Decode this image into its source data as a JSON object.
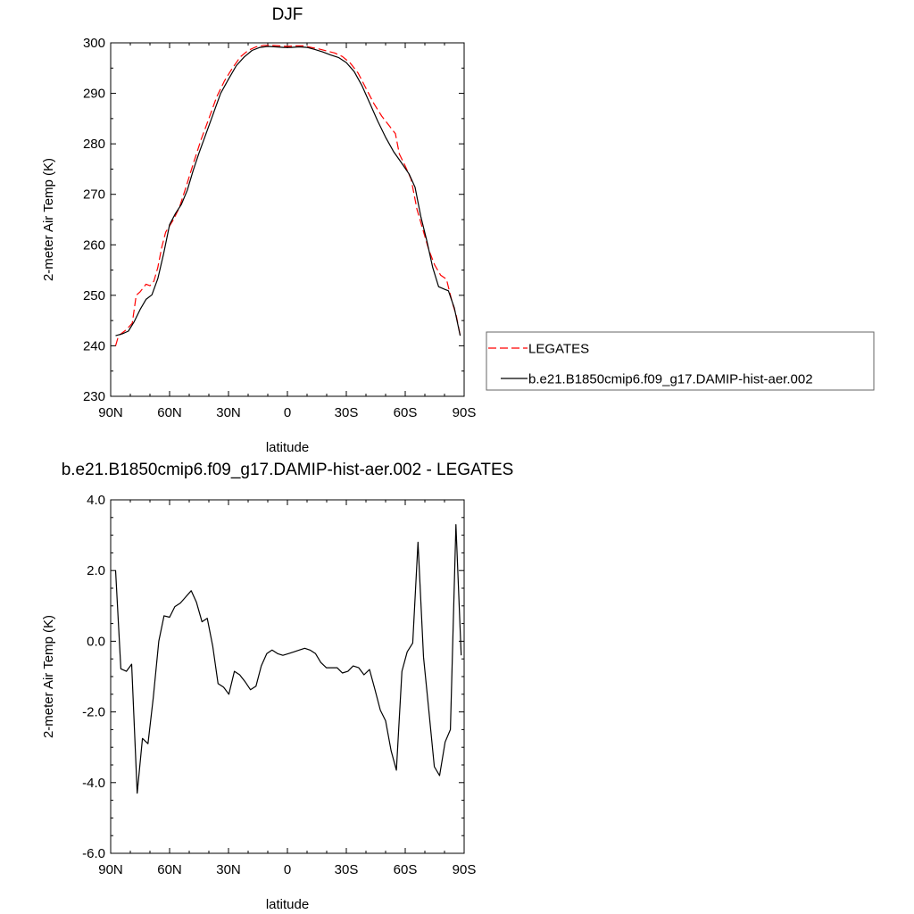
{
  "chart_data": [
    {
      "type": "line",
      "title": "DJF",
      "xlabel": "latitude",
      "ylabel": "2-meter Air Temp (K)",
      "xlim": [
        90,
        -90
      ],
      "ylim": [
        230,
        300
      ],
      "xticks": [
        {
          "v": 90,
          "label": "90N"
        },
        {
          "v": 60,
          "label": "60N"
        },
        {
          "v": 30,
          "label": "30N"
        },
        {
          "v": 0,
          "label": "0"
        },
        {
          "v": -30,
          "label": "30S"
        },
        {
          "v": -60,
          "label": "60S"
        },
        {
          "v": -90,
          "label": "90S"
        }
      ],
      "yticks": [
        {
          "v": 300,
          "label": "300"
        },
        {
          "v": 290,
          "label": "290"
        },
        {
          "v": 280,
          "label": "280"
        },
        {
          "v": 270,
          "label": "270"
        },
        {
          "v": 260,
          "label": "260"
        },
        {
          "v": 250,
          "label": "250"
        },
        {
          "v": 240,
          "label": "240"
        },
        {
          "v": 230,
          "label": "230"
        }
      ],
      "legend": {
        "placement": "right",
        "entries": [
          {
            "label": "LEGATES",
            "color": "#ff0000",
            "dash": true
          },
          {
            "label": "b.e21.B1850cmip6.f09_g17.DAMIP-hist-aer.002",
            "color": "#000000",
            "dash": false
          }
        ]
      },
      "series": [
        {
          "name": "LEGATES",
          "color": "#ff0000",
          "dash": true,
          "points": [
            [
              87.5,
              240
            ],
            [
              86,
              242
            ],
            [
              82,
              243.2
            ],
            [
              79,
              244.5
            ],
            [
              77,
              250
            ],
            [
              75,
              250.7
            ],
            [
              72,
              252.2
            ],
            [
              70,
              251.9
            ],
            [
              68,
              252.8
            ],
            [
              66,
              255.5
            ],
            [
              64,
              259.5
            ],
            [
              62,
              262.5
            ],
            [
              58,
              265
            ],
            [
              55,
              267.4
            ],
            [
              52,
              271
            ],
            [
              48,
              276
            ],
            [
              44,
              280.8
            ],
            [
              40,
              285
            ],
            [
              36,
              289.3
            ],
            [
              32,
              292.5
            ],
            [
              28,
              295
            ],
            [
              24,
              297.2
            ],
            [
              20,
              298.5
            ],
            [
              16,
              299.2
            ],
            [
              12,
              299.5
            ],
            [
              8,
              299.5
            ],
            [
              4,
              299.4
            ],
            [
              0,
              299.3
            ],
            [
              -4,
              299.4
            ],
            [
              -8,
              299.4
            ],
            [
              -12,
              299.1
            ],
            [
              -16,
              298.8
            ],
            [
              -20,
              298.4
            ],
            [
              -24,
              298
            ],
            [
              -28,
              297.3
            ],
            [
              -32,
              296
            ],
            [
              -36,
              294
            ],
            [
              -40,
              291
            ],
            [
              -44,
              288
            ],
            [
              -48,
              285.5
            ],
            [
              -52,
              283.5
            ],
            [
              -55,
              282
            ],
            [
              -57,
              278
            ],
            [
              -60,
              275.6
            ],
            [
              -63,
              273
            ],
            [
              -66,
              267
            ],
            [
              -69,
              263
            ],
            [
              -72,
              259
            ],
            [
              -75,
              256
            ],
            [
              -78,
              254
            ],
            [
              -81,
              253.2
            ],
            [
              -84,
              248.5
            ],
            [
              -86,
              246
            ],
            [
              -88,
              242
            ]
          ]
        },
        {
          "name": "b.e21.B1850cmip6.f09_g17.DAMIP-hist-aer.002",
          "color": "#000000",
          "dash": false,
          "points": [
            [
              87.5,
              242
            ],
            [
              84,
              242.4
            ],
            [
              81,
              242.9
            ],
            [
              78,
              244.8
            ],
            [
              75,
              247.2
            ],
            [
              72,
              249.2
            ],
            [
              69,
              250.1
            ],
            [
              66,
              253.3
            ],
            [
              63,
              258.3
            ],
            [
              60,
              264
            ],
            [
              57,
              266.2
            ],
            [
              54,
              268
            ],
            [
              51,
              270.8
            ],
            [
              48,
              274.7
            ],
            [
              45,
              278.2
            ],
            [
              42,
              281.4
            ],
            [
              38,
              285.7
            ],
            [
              34,
              290
            ],
            [
              30,
              292.8
            ],
            [
              26,
              295.5
            ],
            [
              22,
              297.2
            ],
            [
              18,
              298.5
            ],
            [
              14,
              299.1
            ],
            [
              10,
              299.3
            ],
            [
              6,
              299.2
            ],
            [
              2,
              299.1
            ],
            [
              -2,
              299.1
            ],
            [
              -6,
              299.2
            ],
            [
              -10,
              299.1
            ],
            [
              -14,
              298.7
            ],
            [
              -18,
              298.2
            ],
            [
              -22,
              297.6
            ],
            [
              -26,
              297.1
            ],
            [
              -30,
              296.1
            ],
            [
              -34,
              294.3
            ],
            [
              -38,
              291.5
            ],
            [
              -42,
              288
            ],
            [
              -46,
              284.5
            ],
            [
              -50,
              281.3
            ],
            [
              -54,
              278.5
            ],
            [
              -58,
              276.3
            ],
            [
              -62,
              274
            ],
            [
              -65,
              271.4
            ],
            [
              -68,
              265.5
            ],
            [
              -71,
              260.8
            ],
            [
              -74,
              255.5
            ],
            [
              -77,
              251.7
            ],
            [
              -80,
              251.2
            ],
            [
              -82,
              250.9
            ],
            [
              -85,
              247.5
            ],
            [
              -88,
              242
            ]
          ]
        }
      ]
    },
    {
      "type": "line",
      "title": "b.e21.B1850cmip6.f09_g17.DAMIP-hist-aer.002 - LEGATES",
      "xlabel": "latitude",
      "ylabel": "2-meter Air Temp (K)",
      "xlim": [
        90,
        -90
      ],
      "ylim": [
        -6,
        4
      ],
      "xticks": [
        {
          "v": 90,
          "label": "90N"
        },
        {
          "v": 60,
          "label": "60N"
        },
        {
          "v": 30,
          "label": "30N"
        },
        {
          "v": 0,
          "label": "0"
        },
        {
          "v": -30,
          "label": "30S"
        },
        {
          "v": -60,
          "label": "60S"
        },
        {
          "v": -90,
          "label": "90S"
        }
      ],
      "yticks": [
        {
          "v": 4,
          "label": "4.0"
        },
        {
          "v": 2,
          "label": "2.0"
        },
        {
          "v": 0,
          "label": "0.0"
        },
        {
          "v": -2,
          "label": "-2.0"
        },
        {
          "v": -4,
          "label": "-4.0"
        },
        {
          "v": -6,
          "label": "-6.0"
        }
      ],
      "series": [
        {
          "name": "",
          "color": "#000000",
          "dash": false,
          "points": [
            [
              87.5,
              2
            ],
            [
              84.8,
              -0.78
            ],
            [
              82,
              -0.85
            ],
            [
              79.3,
              -0.65
            ],
            [
              76.5,
              -4.3
            ],
            [
              73.8,
              -2.75
            ],
            [
              71,
              -2.9
            ],
            [
              68.3,
              -1.6
            ],
            [
              65.5,
              0
            ],
            [
              62.8,
              0.72
            ],
            [
              60,
              0.68
            ],
            [
              57.3,
              0.98
            ],
            [
              54.5,
              1.08
            ],
            [
              51.8,
              1.25
            ],
            [
              49,
              1.43
            ],
            [
              46.3,
              1.1
            ],
            [
              43.5,
              0.55
            ],
            [
              40.8,
              0.65
            ],
            [
              38,
              -0.15
            ],
            [
              35.3,
              -1.2
            ],
            [
              32.5,
              -1.3
            ],
            [
              29.8,
              -1.5
            ],
            [
              27,
              -0.85
            ],
            [
              24.3,
              -0.95
            ],
            [
              21.5,
              -1.15
            ],
            [
              18.8,
              -1.37
            ],
            [
              16,
              -1.27
            ],
            [
              13.3,
              -0.7
            ],
            [
              10.5,
              -0.35
            ],
            [
              7.8,
              -0.25
            ],
            [
              5,
              -0.35
            ],
            [
              2.3,
              -0.4
            ],
            [
              -0.5,
              -0.35
            ],
            [
              -3.3,
              -0.3
            ],
            [
              -6,
              -0.25
            ],
            [
              -8.8,
              -0.2
            ],
            [
              -11.5,
              -0.25
            ],
            [
              -14.3,
              -0.35
            ],
            [
              -17,
              -0.6
            ],
            [
              -19.8,
              -0.75
            ],
            [
              -22.5,
              -0.75
            ],
            [
              -25.3,
              -0.75
            ],
            [
              -28,
              -0.9
            ],
            [
              -30.8,
              -0.85
            ],
            [
              -33.5,
              -0.7
            ],
            [
              -36.3,
              -0.75
            ],
            [
              -39,
              -0.95
            ],
            [
              -41.8,
              -0.8
            ],
            [
              -44.5,
              -1.35
            ],
            [
              -47.3,
              -1.95
            ],
            [
              -50,
              -2.25
            ],
            [
              -52.8,
              -3.1
            ],
            [
              -55.5,
              -3.65
            ],
            [
              -58.3,
              -0.85
            ],
            [
              -61,
              -0.3
            ],
            [
              -63.8,
              -0.05
            ],
            [
              -66.5,
              2.8
            ],
            [
              -69.3,
              -0.45
            ],
            [
              -72,
              -1.95
            ],
            [
              -74.8,
              -3.55
            ],
            [
              -77.5,
              -3.8
            ],
            [
              -80.3,
              -2.85
            ],
            [
              -83,
              -2.5
            ],
            [
              -85.8,
              3.3
            ],
            [
              -88.5,
              -0.4
            ]
          ]
        }
      ]
    }
  ]
}
